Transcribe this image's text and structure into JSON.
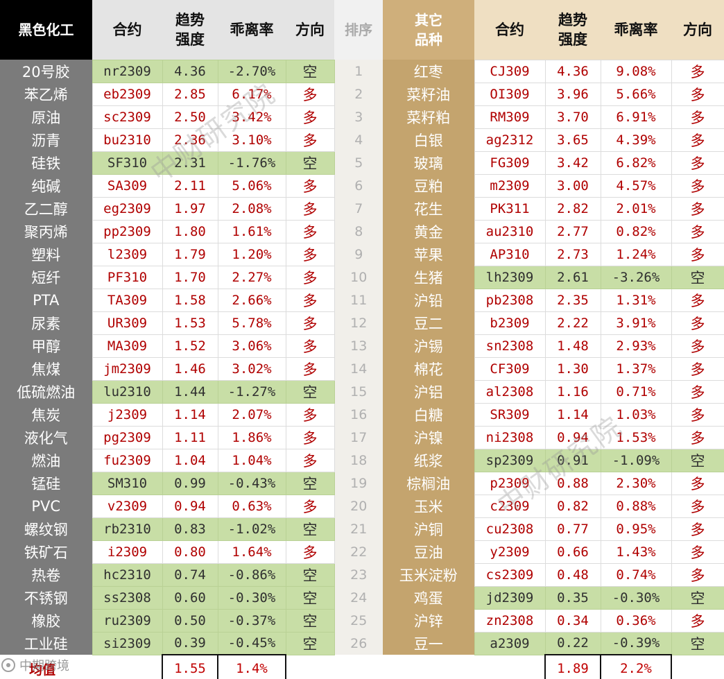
{
  "headers": {
    "left_category": "黑色化工",
    "contract": "合约",
    "strength": "趋势\n强度",
    "deviation": "乖离率",
    "direction": "方向",
    "rank": "排序",
    "right_category": "其它\n品种"
  },
  "rows": [
    {
      "rank": "1",
      "l": {
        "name": "20号胶",
        "code": "nr2309",
        "s": "4.36",
        "d": "-2.70%",
        "dir": "空"
      },
      "r": {
        "name": "红枣",
        "code": "CJ309",
        "s": "4.36",
        "d": "9.08%",
        "dir": "多"
      }
    },
    {
      "rank": "2",
      "l": {
        "name": "苯乙烯",
        "code": "eb2309",
        "s": "2.85",
        "d": "6.17%",
        "dir": "多"
      },
      "r": {
        "name": "菜籽油",
        "code": "OI309",
        "s": "3.96",
        "d": "5.66%",
        "dir": "多"
      }
    },
    {
      "rank": "3",
      "l": {
        "name": "原油",
        "code": "sc2309",
        "s": "2.50",
        "d": "3.42%",
        "dir": "多"
      },
      "r": {
        "name": "菜籽粕",
        "code": "RM309",
        "s": "3.70",
        "d": "6.91%",
        "dir": "多"
      }
    },
    {
      "rank": "4",
      "l": {
        "name": "沥青",
        "code": "bu2310",
        "s": "2.36",
        "d": "3.10%",
        "dir": "多"
      },
      "r": {
        "name": "白银",
        "code": "ag2312",
        "s": "3.65",
        "d": "4.39%",
        "dir": "多"
      }
    },
    {
      "rank": "5",
      "l": {
        "name": "硅铁",
        "code": "SF310",
        "s": "2.31",
        "d": "-1.76%",
        "dir": "空"
      },
      "r": {
        "name": "玻璃",
        "code": "FG309",
        "s": "3.42",
        "d": "6.82%",
        "dir": "多"
      }
    },
    {
      "rank": "6",
      "l": {
        "name": "纯碱",
        "code": "SA309",
        "s": "2.11",
        "d": "5.06%",
        "dir": "多"
      },
      "r": {
        "name": "豆粕",
        "code": "m2309",
        "s": "3.00",
        "d": "4.57%",
        "dir": "多"
      }
    },
    {
      "rank": "7",
      "l": {
        "name": "乙二醇",
        "code": "eg2309",
        "s": "1.97",
        "d": "2.08%",
        "dir": "多"
      },
      "r": {
        "name": "花生",
        "code": "PK311",
        "s": "2.82",
        "d": "2.01%",
        "dir": "多"
      }
    },
    {
      "rank": "8",
      "l": {
        "name": "聚丙烯",
        "code": "pp2309",
        "s": "1.80",
        "d": "1.61%",
        "dir": "多"
      },
      "r": {
        "name": "黄金",
        "code": "au2310",
        "s": "2.77",
        "d": "0.82%",
        "dir": "多"
      }
    },
    {
      "rank": "9",
      "l": {
        "name": "塑料",
        "code": "l2309",
        "s": "1.79",
        "d": "1.20%",
        "dir": "多"
      },
      "r": {
        "name": "苹果",
        "code": "AP310",
        "s": "2.73",
        "d": "1.24%",
        "dir": "多"
      }
    },
    {
      "rank": "10",
      "l": {
        "name": "短纤",
        "code": "PF310",
        "s": "1.70",
        "d": "2.27%",
        "dir": "多"
      },
      "r": {
        "name": "生猪",
        "code": "lh2309",
        "s": "2.61",
        "d": "-3.26%",
        "dir": "空"
      }
    },
    {
      "rank": "11",
      "l": {
        "name": "PTA",
        "code": "TA309",
        "s": "1.58",
        "d": "2.66%",
        "dir": "多"
      },
      "r": {
        "name": "沪铅",
        "code": "pb2308",
        "s": "2.35",
        "d": "1.31%",
        "dir": "多"
      }
    },
    {
      "rank": "12",
      "l": {
        "name": "尿素",
        "code": "UR309",
        "s": "1.53",
        "d": "5.78%",
        "dir": "多"
      },
      "r": {
        "name": "豆二",
        "code": "b2309",
        "s": "2.22",
        "d": "3.91%",
        "dir": "多"
      }
    },
    {
      "rank": "13",
      "l": {
        "name": "甲醇",
        "code": "MA309",
        "s": "1.52",
        "d": "3.06%",
        "dir": "多"
      },
      "r": {
        "name": "沪锡",
        "code": "sn2308",
        "s": "1.48",
        "d": "2.93%",
        "dir": "多"
      }
    },
    {
      "rank": "14",
      "l": {
        "name": "焦煤",
        "code": "jm2309",
        "s": "1.46",
        "d": "3.02%",
        "dir": "多"
      },
      "r": {
        "name": "棉花",
        "code": "CF309",
        "s": "1.30",
        "d": "1.37%",
        "dir": "多"
      }
    },
    {
      "rank": "15",
      "l": {
        "name": "低硫燃油",
        "code": "lu2310",
        "s": "1.44",
        "d": "-1.27%",
        "dir": "空"
      },
      "r": {
        "name": "沪铝",
        "code": "al2308",
        "s": "1.16",
        "d": "0.71%",
        "dir": "多"
      }
    },
    {
      "rank": "16",
      "l": {
        "name": "焦炭",
        "code": "j2309",
        "s": "1.14",
        "d": "2.07%",
        "dir": "多"
      },
      "r": {
        "name": "白糖",
        "code": "SR309",
        "s": "1.14",
        "d": "1.03%",
        "dir": "多"
      }
    },
    {
      "rank": "17",
      "l": {
        "name": "液化气",
        "code": "pg2309",
        "s": "1.11",
        "d": "1.86%",
        "dir": "多"
      },
      "r": {
        "name": "沪镍",
        "code": "ni2308",
        "s": "0.94",
        "d": "1.53%",
        "dir": "多"
      }
    },
    {
      "rank": "18",
      "l": {
        "name": "燃油",
        "code": "fu2309",
        "s": "1.04",
        "d": "1.04%",
        "dir": "多"
      },
      "r": {
        "name": "纸浆",
        "code": "sp2309",
        "s": "0.91",
        "d": "-1.09%",
        "dir": "空"
      }
    },
    {
      "rank": "19",
      "l": {
        "name": "锰硅",
        "code": "SM310",
        "s": "0.99",
        "d": "-0.43%",
        "dir": "空"
      },
      "r": {
        "name": "棕榈油",
        "code": "p2309",
        "s": "0.88",
        "d": "2.30%",
        "dir": "多"
      }
    },
    {
      "rank": "20",
      "l": {
        "name": "PVC",
        "code": "v2309",
        "s": "0.94",
        "d": "0.63%",
        "dir": "多"
      },
      "r": {
        "name": "玉米",
        "code": "c2309",
        "s": "0.82",
        "d": "0.88%",
        "dir": "多"
      }
    },
    {
      "rank": "21",
      "l": {
        "name": "螺纹钢",
        "code": "rb2310",
        "s": "0.83",
        "d": "-1.02%",
        "dir": "空"
      },
      "r": {
        "name": "沪铜",
        "code": "cu2308",
        "s": "0.77",
        "d": "0.95%",
        "dir": "多"
      }
    },
    {
      "rank": "22",
      "l": {
        "name": "铁矿石",
        "code": "i2309",
        "s": "0.80",
        "d": "1.64%",
        "dir": "多"
      },
      "r": {
        "name": "豆油",
        "code": "y2309",
        "s": "0.66",
        "d": "1.43%",
        "dir": "多"
      }
    },
    {
      "rank": "23",
      "l": {
        "name": "热卷",
        "code": "hc2310",
        "s": "0.74",
        "d": "-0.86%",
        "dir": "空"
      },
      "r": {
        "name": "玉米淀粉",
        "code": "cs2309",
        "s": "0.48",
        "d": "0.74%",
        "dir": "多"
      }
    },
    {
      "rank": "24",
      "l": {
        "name": "不锈钢",
        "code": "ss2308",
        "s": "0.60",
        "d": "-0.30%",
        "dir": "空"
      },
      "r": {
        "name": "鸡蛋",
        "code": "jd2309",
        "s": "0.35",
        "d": "-0.30%",
        "dir": "空"
      }
    },
    {
      "rank": "25",
      "l": {
        "name": "橡胶",
        "code": "ru2309",
        "s": "0.50",
        "d": "-0.37%",
        "dir": "空"
      },
      "r": {
        "name": "沪锌",
        "code": "zn2308",
        "s": "0.34",
        "d": "0.36%",
        "dir": "多"
      }
    },
    {
      "rank": "26",
      "l": {
        "name": "工业硅",
        "code": "si2309",
        "s": "0.39",
        "d": "-0.45%",
        "dir": "空"
      },
      "r": {
        "name": "豆一",
        "code": "a2309",
        "s": "0.22",
        "d": "-0.39%",
        "dir": "空"
      }
    }
  ],
  "footer": {
    "label": "均值",
    "left_strength": "1.55",
    "left_deviation": "1.4%",
    "right_strength": "1.89",
    "right_deviation": "2.2%"
  },
  "watermarks": {
    "text": "中财研究院",
    "brand": "中期跨境"
  },
  "colors": {
    "long_text": "#b00000",
    "short_bg": "#c8dea6",
    "left_name_bg": "#7b7b7b",
    "right_name_bg": "#c4a46e",
    "header_black": "#000000",
    "header_gold": "#cfaf7b"
  }
}
